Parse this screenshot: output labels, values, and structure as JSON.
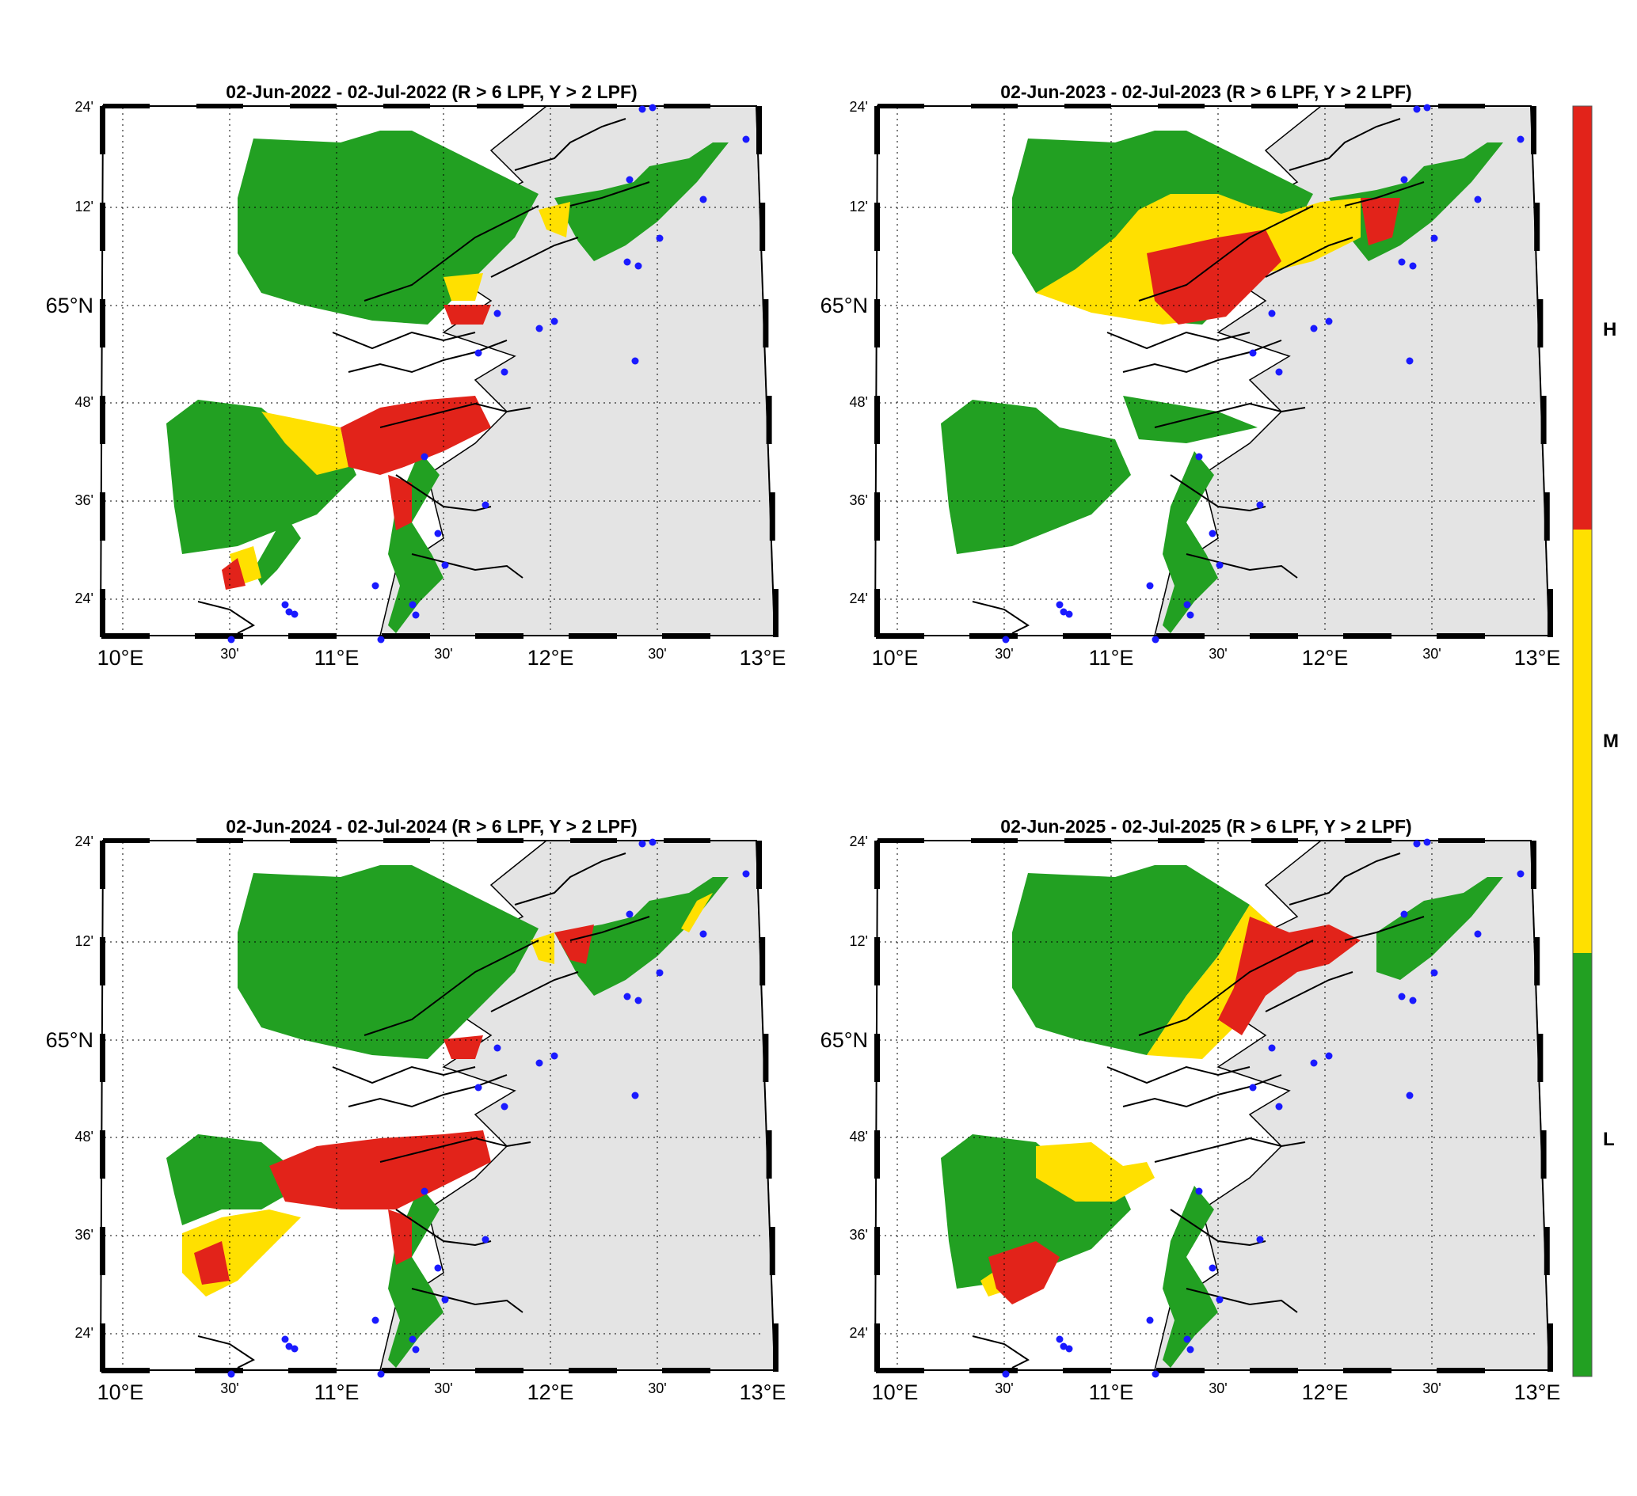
{
  "panels": [
    {
      "title": "02-Jun-2022  - 02-Jul-2022  (R > 6 LPF, Y > 2 LPF)"
    },
    {
      "title": "02-Jun-2023  - 02-Jul-2023  (R > 6 LPF, Y > 2 LPF)"
    },
    {
      "title": "02-Jun-2024  - 02-Jul-2024  (R > 6 LPF, Y > 2 LPF)"
    },
    {
      "title": "02-Jun-2025  - 02-Jul-2025  (R > 6 LPF, Y > 2 LPF)"
    }
  ],
  "axes": {
    "lon_ticks": [
      "10°E",
      "30'",
      "11°E",
      "30'",
      "12°E",
      "30'",
      "13°E"
    ],
    "lat_ticks": [
      "24'",
      "36'",
      "48'",
      "65°N",
      "12'",
      "24'"
    ]
  },
  "colorbar": {
    "categories": [
      {
        "label": "H",
        "color": "#e2231a"
      },
      {
        "label": "M",
        "color": "#ffe000"
      },
      {
        "label": "L",
        "color": "#22a022"
      }
    ]
  },
  "colors": {
    "high": "#e2231a",
    "medium": "#ffe000",
    "low": "#22a022",
    "land": "#e4e4e4",
    "sea": "#ffffff",
    "station": "#1a1aff"
  }
}
